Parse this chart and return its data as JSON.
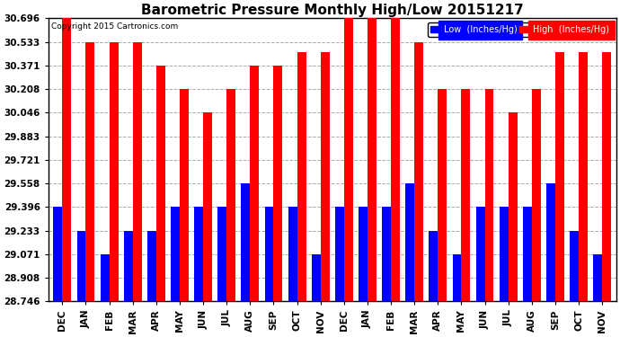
{
  "title": "Barometric Pressure Monthly High/Low 20151217",
  "copyright": "Copyright 2015 Cartronics.com",
  "categories": [
    "DEC",
    "JAN",
    "FEB",
    "MAR",
    "APR",
    "MAY",
    "JUN",
    "JUL",
    "AUG",
    "SEP",
    "OCT",
    "NOV",
    "DEC",
    "JAN",
    "FEB",
    "MAR",
    "APR",
    "MAY",
    "JUN",
    "JUL",
    "AUG",
    "SEP",
    "OCT",
    "NOV"
  ],
  "high_values": [
    30.696,
    30.533,
    30.533,
    30.533,
    30.371,
    30.208,
    30.046,
    30.208,
    30.371,
    30.371,
    30.46,
    30.46,
    30.696,
    30.696,
    30.696,
    30.533,
    30.208,
    30.208,
    30.208,
    30.046,
    30.208,
    30.46,
    30.46,
    30.46
  ],
  "low_values": [
    29.396,
    29.233,
    29.071,
    29.233,
    29.233,
    29.396,
    29.396,
    29.396,
    29.558,
    29.396,
    29.396,
    29.071,
    29.396,
    29.396,
    29.396,
    29.558,
    29.233,
    29.071,
    29.396,
    29.396,
    29.396,
    29.558,
    29.233,
    29.071
  ],
  "ylim_min": 28.746,
  "ylim_max": 30.696,
  "yticks": [
    28.746,
    28.908,
    29.071,
    29.233,
    29.396,
    29.558,
    29.721,
    29.883,
    30.046,
    30.208,
    30.371,
    30.533,
    30.696
  ],
  "bar_width": 0.38,
  "high_color": "#FF0000",
  "low_color": "#0000FF",
  "bg_color": "#FFFFFF",
  "grid_color": "#AAAAAA",
  "title_fontsize": 11,
  "tick_fontsize": 7.5,
  "copyright_fontsize": 6.5,
  "legend_fontsize": 7,
  "label_legend_low": "Low  (Inches/Hg)",
  "label_legend_high": "High  (Inches/Hg)"
}
